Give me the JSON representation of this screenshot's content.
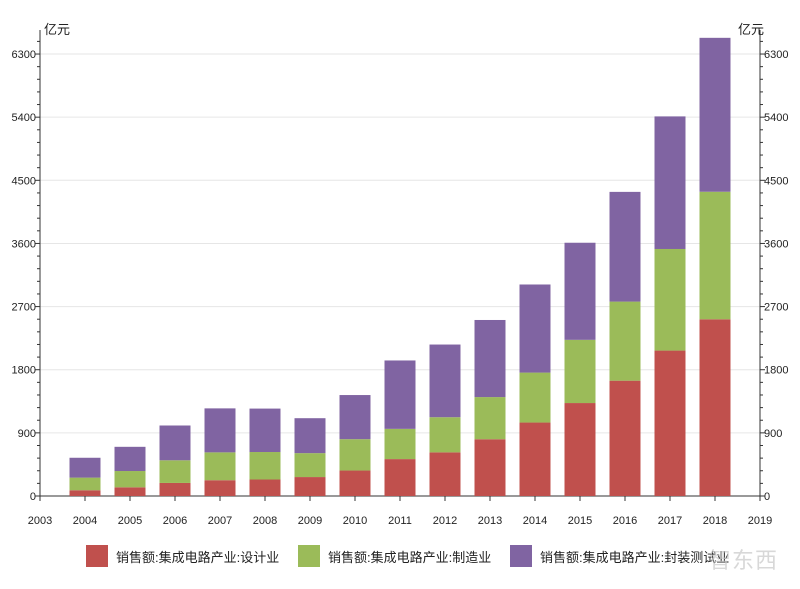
{
  "chart_data": {
    "type": "bar",
    "stacked": true,
    "title": "",
    "ylabel_left": "亿元",
    "ylabel_right": "亿元",
    "x_axis_ticks": [
      "2003",
      "2004",
      "2005",
      "2006",
      "2007",
      "2008",
      "2009",
      "2010",
      "2011",
      "2012",
      "2013",
      "2014",
      "2015",
      "2016",
      "2017",
      "2018",
      "2019"
    ],
    "categories": [
      "2004",
      "2005",
      "2006",
      "2007",
      "2008",
      "2009",
      "2010",
      "2011",
      "2012",
      "2013",
      "2014",
      "2015",
      "2016",
      "2017",
      "2018"
    ],
    "y_ticks": [
      0,
      900,
      1800,
      2700,
      3600,
      4500,
      5400,
      6300
    ],
    "ylim": [
      0,
      6500
    ],
    "grid": true,
    "legend_position": "bottom",
    "series": [
      {
        "name": "销售额:集成电路产业:设计业",
        "color": "#c0504d",
        "values": [
          82,
          124,
          186,
          225,
          235,
          270,
          363,
          526,
          622,
          809,
          1047,
          1325,
          1644,
          2073,
          2519
        ]
      },
      {
        "name": "销售额:集成电路产业:制造业",
        "color": "#9bbb59",
        "values": [
          180,
          232,
          323,
          397,
          392,
          341,
          447,
          431,
          501,
          601,
          712,
          901,
          1127,
          1448,
          1818
        ]
      },
      {
        "name": "销售额:集成电路产业:封装测试业",
        "color": "#8064a2",
        "values": [
          283,
          345,
          496,
          627,
          619,
          498,
          629,
          975,
          1036,
          1099,
          1256,
          1384,
          1564,
          1890,
          2194
        ]
      }
    ]
  },
  "watermark": "智东西"
}
